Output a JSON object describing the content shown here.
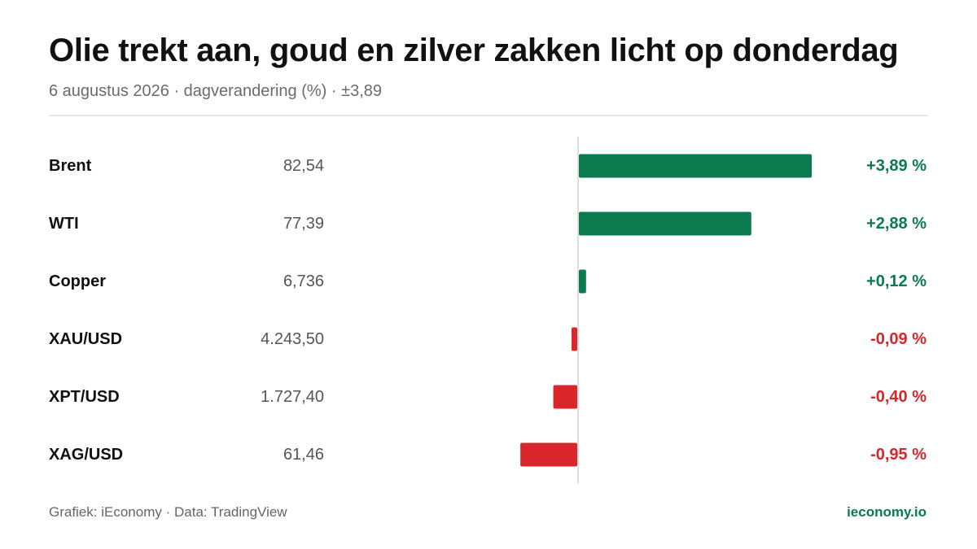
{
  "header": {
    "title": "Olie trekt aan, goud en zilver zakken licht op donderdag",
    "subtitle": "6 augustus 2026 · dagverandering (%) · ±3,89"
  },
  "footer": {
    "source": "Grafiek: iEconomy · Data: TradingView",
    "brand": "ieconomy.io"
  },
  "colors": {
    "positive": "#0b7a4f",
    "negative": "#d9262b",
    "label": "#111111",
    "price": "#555555",
    "axis": "#dedede"
  },
  "chart_data": {
    "type": "bar",
    "orientation": "horizontal",
    "categories": [
      "Brent",
      "WTI",
      "Copper",
      "XAU/USD",
      "XPT/USD",
      "XAG/USD"
    ],
    "prices": [
      "82,54",
      "77,39",
      "6,736",
      "4.243,50",
      "1.727,40",
      "61,46"
    ],
    "values": [
      3.89,
      2.88,
      0.12,
      -0.09,
      -0.4,
      -0.95
    ],
    "value_labels": [
      "+3,89 %",
      "+2,88 %",
      "+0,12 %",
      "-0,09 %",
      "-0,40 %",
      "-0,95 %"
    ],
    "xlim": [
      -3.89,
      3.89
    ],
    "grid": false,
    "legend": "none"
  }
}
